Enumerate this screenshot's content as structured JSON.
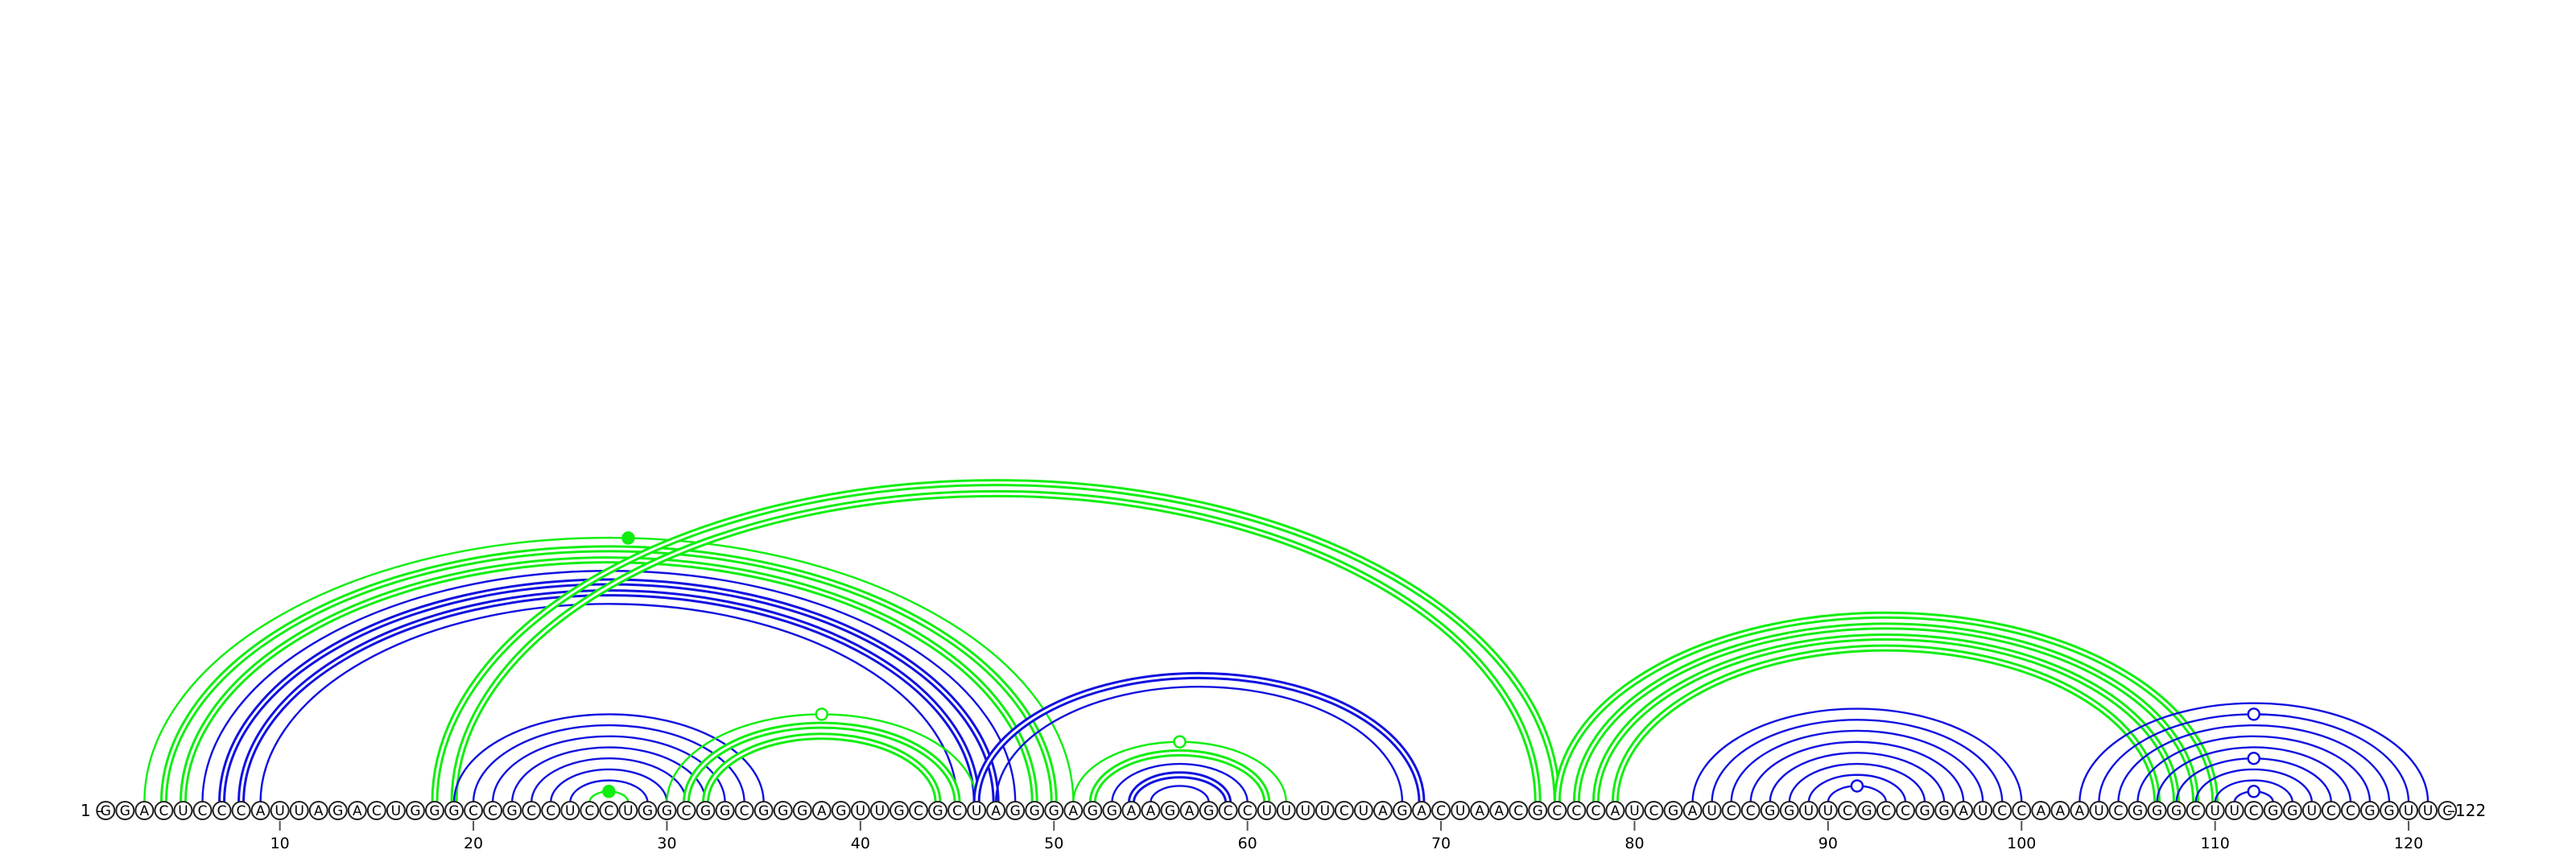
{
  "sequence": "GGACUCCCAUUAGACUGGGCCGCCUCCUGGCGGCGGGAGUUGCGCUAGGGAGGAAGAGCCUUUUCUAGACUAACGCCCAUCGAUCCGGUUCGCCGGAUCCAAAUCGGGCUUCGGUCCGGUUC",
  "labels": {
    "start": "1 –",
    "end": "–122"
  },
  "ticks": [
    10,
    20,
    30,
    40,
    50,
    60,
    70,
    80,
    90,
    100,
    110,
    120
  ],
  "colors": {
    "blue": "#1010e0",
    "green": "#10ee10"
  },
  "arcs": [
    {
      "i": 3,
      "j": 51,
      "color": "green",
      "width": 2
    },
    {
      "i": 4,
      "j": 50,
      "color": "green",
      "width": 5
    },
    {
      "i": 5,
      "j": 49,
      "color": "green",
      "width": 5
    },
    {
      "i": 6,
      "j": 48,
      "color": "blue",
      "width": 2
    },
    {
      "i": 7,
      "j": 47,
      "color": "blue",
      "width": 5
    },
    {
      "i": 8,
      "j": 46,
      "color": "blue",
      "width": 5
    },
    {
      "i": 9,
      "j": 45,
      "color": "blue",
      "width": 2
    },
    {
      "i": 18,
      "j": 76,
      "color": "green",
      "width": 5
    },
    {
      "i": 19,
      "j": 75,
      "color": "green",
      "width": 5
    },
    {
      "i": 19,
      "j": 35,
      "color": "blue",
      "width": 2
    },
    {
      "i": 20,
      "j": 34,
      "color": "blue",
      "width": 2
    },
    {
      "i": 21,
      "j": 33,
      "color": "blue",
      "width": 2
    },
    {
      "i": 22,
      "j": 32,
      "color": "blue",
      "width": 2
    },
    {
      "i": 23,
      "j": 31,
      "color": "blue",
      "width": 2
    },
    {
      "i": 24,
      "j": 30,
      "color": "blue",
      "width": 2
    },
    {
      "i": 25,
      "j": 29,
      "color": "blue",
      "width": 2
    },
    {
      "i": 26,
      "j": 28,
      "color": "green",
      "width": 2
    },
    {
      "i": 30,
      "j": 46,
      "color": "green",
      "width": 2
    },
    {
      "i": 31,
      "j": 45,
      "color": "green",
      "width": 5
    },
    {
      "i": 32,
      "j": 44,
      "color": "green",
      "width": 5
    },
    {
      "i": 46,
      "j": 69,
      "color": "blue",
      "width": 5
    },
    {
      "i": 47,
      "j": 68,
      "color": "blue",
      "width": 2
    },
    {
      "i": 51,
      "j": 62,
      "color": "green",
      "width": 2
    },
    {
      "i": 52,
      "j": 61,
      "color": "green",
      "width": 5
    },
    {
      "i": 53,
      "j": 60,
      "color": "blue",
      "width": 2
    },
    {
      "i": 54,
      "j": 59,
      "color": "blue",
      "width": 5
    },
    {
      "i": 55,
      "j": 58,
      "color": "blue",
      "width": 2
    },
    {
      "i": 76,
      "j": 110,
      "color": "green",
      "width": 5
    },
    {
      "i": 77,
      "j": 109,
      "color": "green",
      "width": 5
    },
    {
      "i": 78,
      "j": 108,
      "color": "green",
      "width": 5
    },
    {
      "i": 79,
      "j": 107,
      "color": "green",
      "width": 5
    },
    {
      "i": 83,
      "j": 100,
      "color": "blue",
      "width": 2
    },
    {
      "i": 84,
      "j": 99,
      "color": "blue",
      "width": 2
    },
    {
      "i": 85,
      "j": 98,
      "color": "blue",
      "width": 2
    },
    {
      "i": 86,
      "j": 97,
      "color": "blue",
      "width": 2
    },
    {
      "i": 87,
      "j": 96,
      "color": "blue",
      "width": 2
    },
    {
      "i": 88,
      "j": 95,
      "color": "blue",
      "width": 2
    },
    {
      "i": 89,
      "j": 94,
      "color": "blue",
      "width": 2
    },
    {
      "i": 90,
      "j": 93,
      "color": "blue",
      "width": 2
    },
    {
      "i": 103,
      "j": 121,
      "color": "blue",
      "width": 2
    },
    {
      "i": 104,
      "j": 120,
      "color": "blue",
      "width": 2
    },
    {
      "i": 105,
      "j": 119,
      "color": "blue",
      "width": 2
    },
    {
      "i": 106,
      "j": 118,
      "color": "blue",
      "width": 2
    },
    {
      "i": 107,
      "j": 117,
      "color": "blue",
      "width": 2
    },
    {
      "i": 108,
      "j": 116,
      "color": "blue",
      "width": 2
    },
    {
      "i": 109,
      "j": 115,
      "color": "blue",
      "width": 2
    },
    {
      "i": 110,
      "j": 114,
      "color": "blue",
      "width": 2
    },
    {
      "i": 111,
      "j": 113,
      "color": "blue",
      "width": 2
    }
  ],
  "markers": [
    {
      "pos": 28.0,
      "on_arc": 0,
      "color": "green",
      "filled": true
    },
    {
      "pos": 27.0,
      "on_arc": 16,
      "color": "green",
      "filled": true
    },
    {
      "pos": 38.0,
      "on_arc": 17,
      "color": "green",
      "filled": false
    },
    {
      "pos": 56.5,
      "on_arc": 22,
      "color": "green",
      "filled": false
    },
    {
      "pos": 91.5,
      "on_arc": 38,
      "color": "blue",
      "filled": false
    },
    {
      "pos": 112.0,
      "on_arc": 40,
      "color": "blue",
      "filled": false
    },
    {
      "pos": 112.0,
      "on_arc": 44,
      "color": "blue",
      "filled": false
    },
    {
      "pos": 112.0,
      "on_arc": 47,
      "color": "blue",
      "filled": false
    }
  ]
}
